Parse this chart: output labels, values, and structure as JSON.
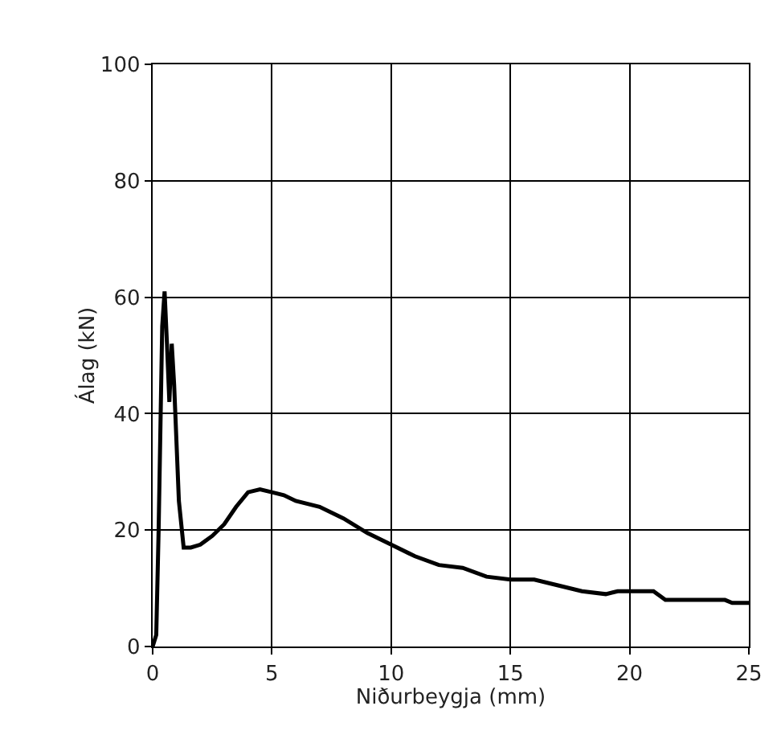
{
  "chart_data": {
    "type": "line",
    "xlabel": "Niðurbeygja (mm)",
    "ylabel": "Álag (kN)",
    "x": [
      0,
      0.15,
      0.25,
      0.4,
      0.5,
      0.6,
      0.7,
      0.8,
      0.9,
      1.1,
      1.3,
      1.6,
      2,
      2.5,
      3,
      3.5,
      4,
      4.5,
      5,
      5.5,
      6,
      7,
      8,
      9,
      10,
      11,
      12,
      13,
      14,
      15,
      16,
      17,
      18,
      19,
      19.5,
      20,
      21,
      21.5,
      22,
      23,
      24,
      24.3,
      25
    ],
    "series": [
      {
        "color": "#000000",
        "values": [
          0,
          2,
          20,
          55,
          61,
          52,
          42,
          52,
          45,
          25,
          17,
          17,
          17.5,
          19,
          21,
          24,
          26.5,
          27,
          26.5,
          26,
          25,
          24,
          22,
          19.5,
          17.5,
          15.5,
          14,
          13.5,
          12,
          11.5,
          11.5,
          10.5,
          9.5,
          9,
          9.5,
          9.5,
          9.5,
          8,
          8,
          8,
          8,
          7.5,
          7.5
        ]
      }
    ],
    "xlim": [
      0,
      25
    ],
    "xticks": [
      0,
      5,
      10,
      15,
      20,
      25
    ],
    "ylim": [
      0,
      100
    ],
    "yticks": [
      0,
      20,
      40,
      60,
      80,
      100
    ],
    "grid": true,
    "line_style": "solid"
  }
}
